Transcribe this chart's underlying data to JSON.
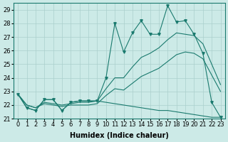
{
  "xlabel": "Humidex (Indice chaleur)",
  "x_values": [
    0,
    1,
    2,
    3,
    4,
    5,
    6,
    7,
    8,
    9,
    10,
    11,
    12,
    13,
    14,
    15,
    16,
    17,
    18,
    19,
    20,
    21,
    22,
    23
  ],
  "main_line": [
    22.8,
    21.8,
    21.6,
    22.4,
    22.4,
    21.6,
    22.2,
    22.3,
    22.3,
    22.3,
    24.0,
    28.0,
    25.9,
    27.3,
    28.2,
    27.2,
    27.2,
    29.3,
    28.1,
    28.2,
    27.2,
    25.8,
    22.2,
    21.1
  ],
  "trend_upper": [
    22.8,
    22.0,
    21.8,
    22.2,
    22.1,
    22.0,
    22.1,
    22.2,
    22.2,
    22.3,
    23.2,
    24.0,
    24.0,
    24.8,
    25.5,
    25.8,
    26.2,
    26.8,
    27.3,
    27.2,
    27.1,
    26.5,
    25.0,
    23.5
  ],
  "trend_lower": [
    22.8,
    22.0,
    21.8,
    22.1,
    22.0,
    21.9,
    22.0,
    22.0,
    22.0,
    22.1,
    22.7,
    23.2,
    23.1,
    23.6,
    24.1,
    24.4,
    24.7,
    25.2,
    25.7,
    25.9,
    25.8,
    25.4,
    24.2,
    23.0
  ],
  "flat_line": [
    22.8,
    21.8,
    21.6,
    22.4,
    22.4,
    21.6,
    22.2,
    22.3,
    22.3,
    22.3,
    22.2,
    22.1,
    22.0,
    21.9,
    21.8,
    21.7,
    21.6,
    21.6,
    21.5,
    21.4,
    21.3,
    21.2,
    21.1,
    21.1
  ],
  "ylim": [
    21.0,
    29.5
  ],
  "yticks": [
    21,
    22,
    23,
    24,
    25,
    26,
    27,
    28,
    29
  ],
  "bg_color": "#cceae7",
  "line_color": "#1a7a6e",
  "grid_color": "#aacfcc",
  "label_fontsize": 7,
  "tick_fontsize": 6,
  "figsize": [
    3.2,
    2.0
  ],
  "dpi": 100
}
